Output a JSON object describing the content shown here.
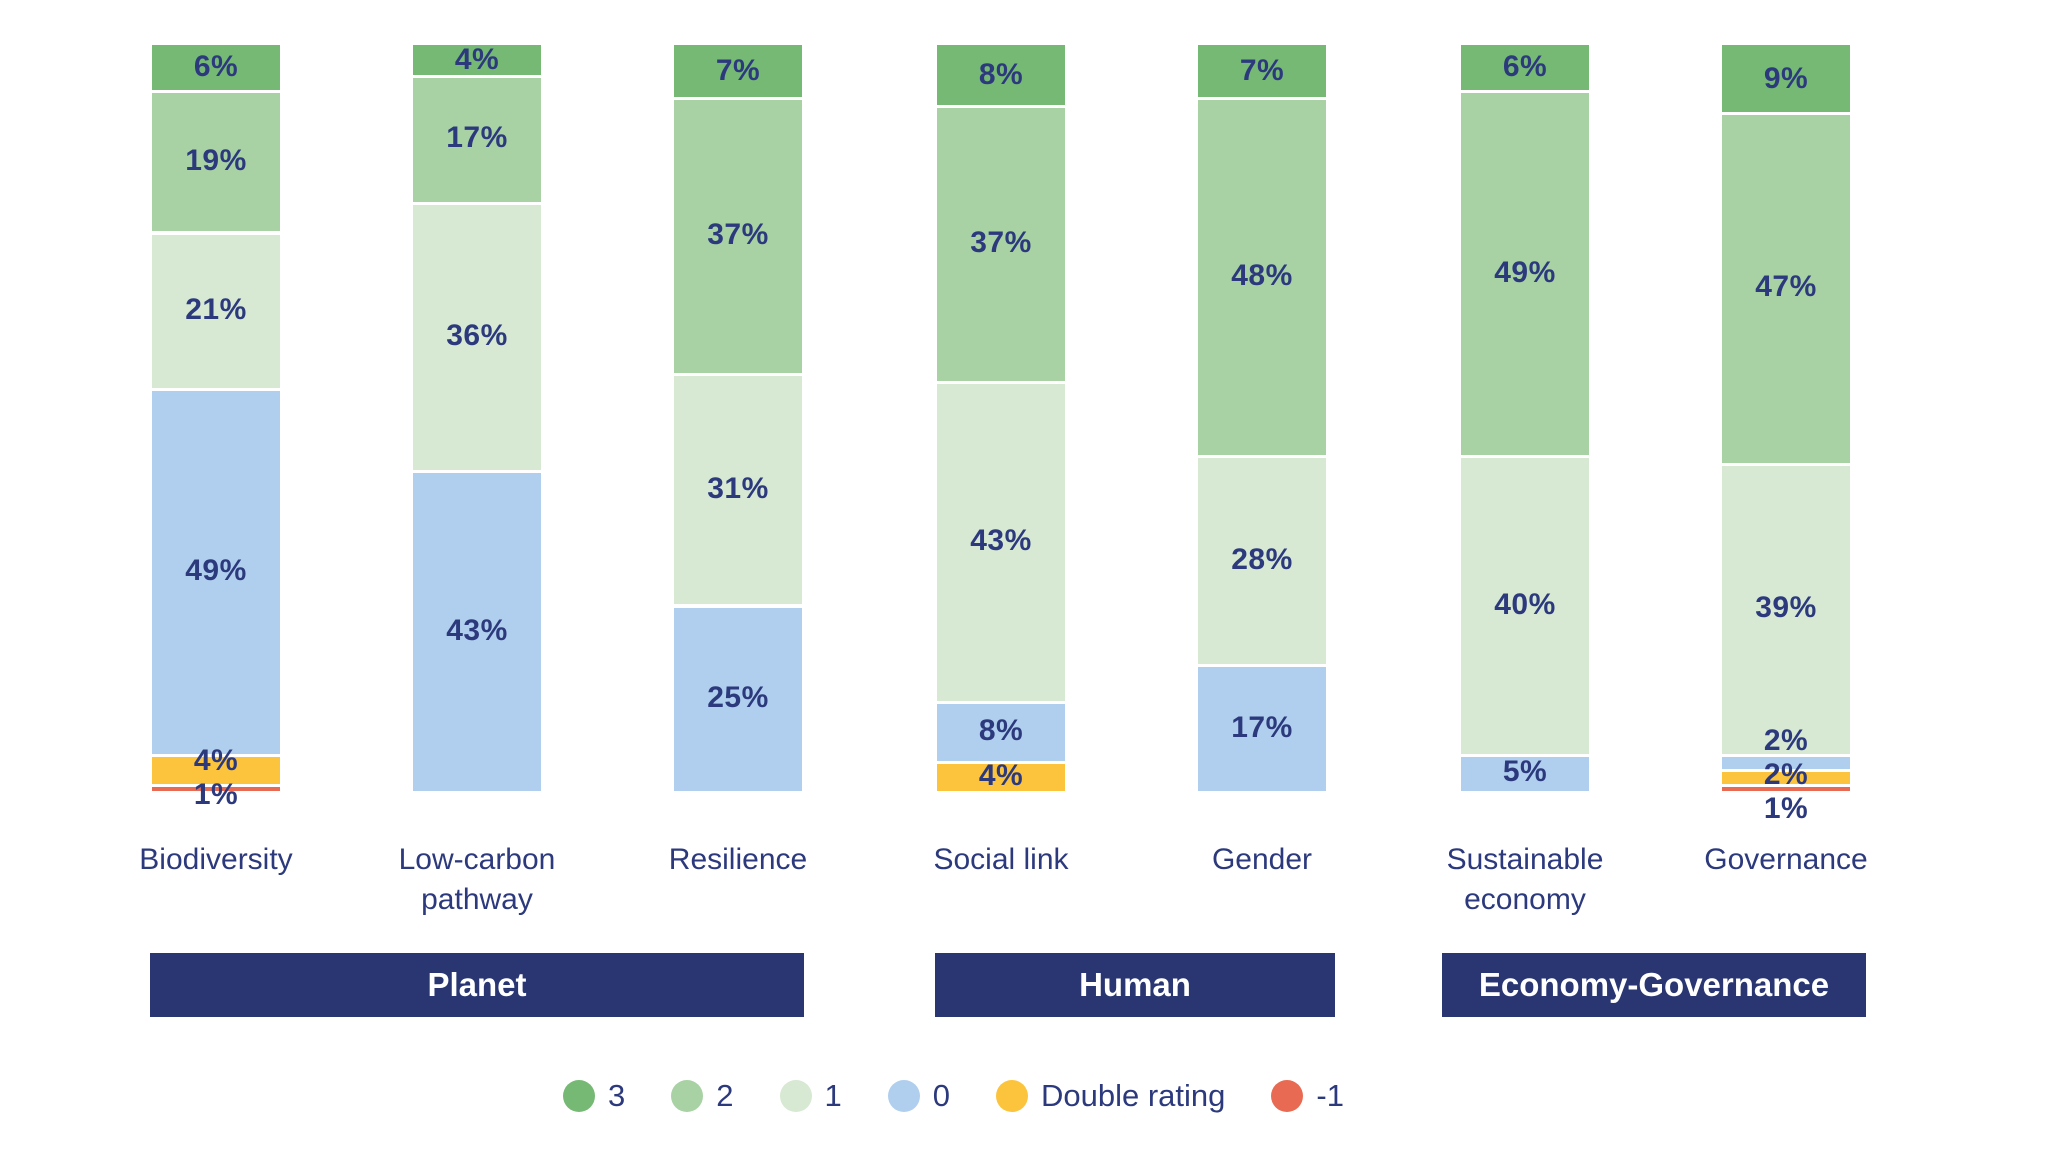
{
  "page": {
    "background": "#ffffff",
    "text_color": "#2c3a7d",
    "group_box_color": "#293672"
  },
  "chart_data": {
    "type": "bar",
    "stacked": true,
    "orientation": "vertical",
    "unit": "%",
    "title": "",
    "xlabel": "",
    "ylabel": "",
    "ylim": [
      0,
      100
    ],
    "grid": false,
    "legend_position": "bottom",
    "categories": [
      "Biodiversity",
      "Low-carbon pathway",
      "Resilience",
      "Social link",
      "Gender",
      "Sustainable economy",
      "Governance"
    ],
    "series": [
      {
        "name": "3",
        "color": "#76b975",
        "values": [
          6,
          4,
          7,
          8,
          7,
          6,
          9
        ]
      },
      {
        "name": "2",
        "color": "#a8d2a4",
        "values": [
          19,
          17,
          37,
          37,
          48,
          49,
          47
        ]
      },
      {
        "name": "1",
        "color": "#d7e8d3",
        "values": [
          21,
          36,
          31,
          43,
          28,
          40,
          39
        ]
      },
      {
        "name": "0",
        "color": "#b0cfee",
        "values": [
          49,
          43,
          25,
          8,
          17,
          5,
          2
        ]
      },
      {
        "name": "Double rating",
        "color": "#fcc43c",
        "values": [
          4,
          0,
          0,
          4,
          0,
          0,
          2
        ]
      },
      {
        "name": "-1",
        "color": "#e96a52",
        "values": [
          1,
          0,
          0,
          0,
          0,
          0,
          1
        ]
      }
    ],
    "groups": [
      {
        "label": "Planet",
        "categories": [
          "Biodiversity",
          "Low-carbon pathway",
          "Resilience"
        ]
      },
      {
        "label": "Human",
        "categories": [
          "Social link",
          "Gender"
        ]
      },
      {
        "label": "Economy-Governance",
        "categories": [
          "Sustainable economy",
          "Governance"
        ]
      }
    ],
    "annotations": {
      "biodiversity_labels": [
        "6%",
        "19%",
        "21%",
        "49%",
        "4%",
        "1%"
      ],
      "low_carbon_pathway_labels": [
        "4%",
        "17%",
        "36%",
        "43%"
      ],
      "resilience_labels": [
        "7%",
        "37%",
        "31%",
        "25%"
      ],
      "social_link_labels": [
        "8%",
        "37%",
        "43%",
        "8%",
        "4%"
      ],
      "gender_labels": [
        "7%",
        "48%",
        "28%",
        "17%"
      ],
      "sustainable_economy_labels": [
        "6%",
        "49%",
        "40%",
        "5%"
      ],
      "governance_labels": [
        "9%",
        "47%",
        "39%",
        "2%",
        "2%",
        "1%"
      ]
    }
  },
  "legend": {
    "items": [
      {
        "label": "3",
        "color": "#76b975"
      },
      {
        "label": "2",
        "color": "#a8d2a4"
      },
      {
        "label": "1",
        "color": "#d7e8d3"
      },
      {
        "label": "0",
        "color": "#b0cfee"
      },
      {
        "label": "Double rating",
        "color": "#fcc43c"
      },
      {
        "label": "-1",
        "color": "#e96a52"
      }
    ]
  }
}
